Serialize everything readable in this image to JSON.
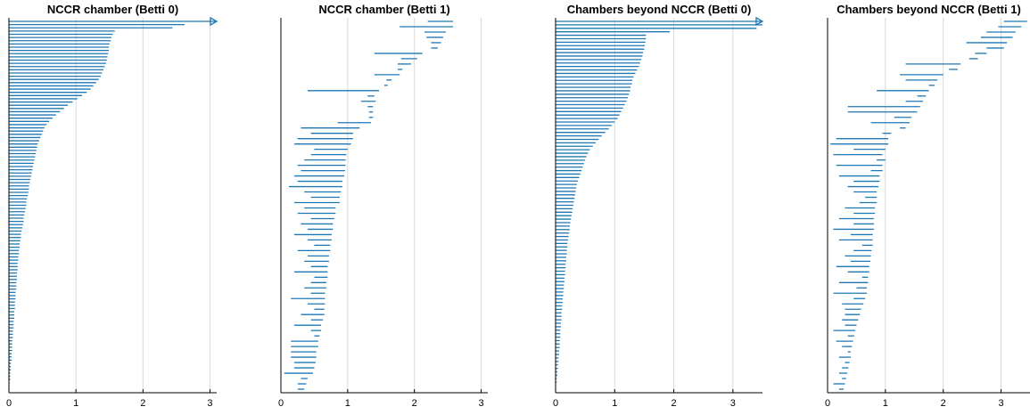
{
  "colors": {
    "bar": "#1f77b4",
    "grid": "#d9d9d9",
    "axis": "#000000"
  },
  "chart_data": [
    {
      "type": "barcode",
      "title": "NCCR chamber (Betti 0)",
      "xlim": [
        0,
        3.1
      ],
      "xticks": [
        "0",
        "1",
        "2",
        "3"
      ],
      "grid": "vertical",
      "infinite_bar": true,
      "intervals": [
        [
          0,
          3.1
        ],
        [
          0,
          2.62
        ],
        [
          0,
          2.44
        ],
        [
          0,
          1.58
        ],
        [
          0,
          1.55
        ],
        [
          0,
          1.53
        ],
        [
          0,
          1.52
        ],
        [
          0,
          1.5
        ],
        [
          0,
          1.49
        ],
        [
          0,
          1.49
        ],
        [
          0,
          1.48
        ],
        [
          0,
          1.47
        ],
        [
          0,
          1.46
        ],
        [
          0,
          1.45
        ],
        [
          0,
          1.43
        ],
        [
          0,
          1.41
        ],
        [
          0,
          1.39
        ],
        [
          0,
          1.37
        ],
        [
          0,
          1.34
        ],
        [
          0,
          1.3
        ],
        [
          0,
          1.26
        ],
        [
          0,
          1.22
        ],
        [
          0,
          1.16
        ],
        [
          0,
          1.09
        ],
        [
          0,
          1.02
        ],
        [
          0,
          0.95
        ],
        [
          0,
          0.88
        ],
        [
          0,
          0.82
        ],
        [
          0,
          0.76
        ],
        [
          0,
          0.7
        ],
        [
          0,
          0.65
        ],
        [
          0,
          0.6
        ],
        [
          0,
          0.56
        ],
        [
          0,
          0.53
        ],
        [
          0,
          0.51
        ],
        [
          0,
          0.49
        ],
        [
          0,
          0.47
        ],
        [
          0,
          0.45
        ],
        [
          0,
          0.43
        ],
        [
          0,
          0.42
        ],
        [
          0,
          0.41
        ],
        [
          0,
          0.4
        ],
        [
          0,
          0.39
        ],
        [
          0,
          0.38
        ],
        [
          0,
          0.37
        ],
        [
          0,
          0.36
        ],
        [
          0,
          0.35
        ],
        [
          0,
          0.34
        ],
        [
          0,
          0.33
        ],
        [
          0,
          0.32
        ],
        [
          0,
          0.31
        ],
        [
          0,
          0.3
        ],
        [
          0,
          0.3
        ],
        [
          0,
          0.29
        ],
        [
          0,
          0.28
        ],
        [
          0,
          0.27
        ],
        [
          0,
          0.26
        ],
        [
          0,
          0.26
        ],
        [
          0,
          0.25
        ],
        [
          0,
          0.24
        ],
        [
          0,
          0.23
        ],
        [
          0,
          0.22
        ],
        [
          0,
          0.22
        ],
        [
          0,
          0.21
        ],
        [
          0,
          0.2
        ],
        [
          0,
          0.19
        ],
        [
          0,
          0.18
        ],
        [
          0,
          0.18
        ],
        [
          0,
          0.17
        ],
        [
          0,
          0.16
        ],
        [
          0,
          0.16
        ],
        [
          0,
          0.15
        ],
        [
          0,
          0.15
        ],
        [
          0,
          0.14
        ],
        [
          0,
          0.14
        ],
        [
          0,
          0.13
        ],
        [
          0,
          0.13
        ],
        [
          0,
          0.13
        ],
        [
          0,
          0.12
        ],
        [
          0,
          0.12
        ],
        [
          0,
          0.12
        ],
        [
          0,
          0.11
        ],
        [
          0,
          0.11
        ],
        [
          0,
          0.11
        ],
        [
          0,
          0.1
        ],
        [
          0,
          0.1
        ],
        [
          0,
          0.1
        ],
        [
          0,
          0.09
        ],
        [
          0,
          0.09
        ],
        [
          0,
          0.09
        ],
        [
          0,
          0.08
        ],
        [
          0,
          0.08
        ],
        [
          0,
          0.08
        ],
        [
          0,
          0.07
        ],
        [
          0,
          0.07
        ],
        [
          0,
          0.07
        ],
        [
          0,
          0.06
        ],
        [
          0,
          0.06
        ],
        [
          0,
          0.06
        ],
        [
          0,
          0.05
        ],
        [
          0,
          0.05
        ],
        [
          0,
          0.05
        ],
        [
          0,
          0.05
        ],
        [
          0,
          0.04
        ],
        [
          0,
          0.04
        ],
        [
          0,
          0.04
        ],
        [
          0,
          0.03
        ],
        [
          0,
          0.03
        ],
        [
          0,
          0.03
        ],
        [
          0,
          0.02
        ],
        [
          0,
          0.02
        ],
        [
          0,
          0.02
        ],
        [
          0,
          0.01
        ],
        [
          0,
          0.01
        ],
        [
          0,
          0.01
        ]
      ]
    },
    {
      "type": "barcode",
      "title": "NCCR chamber (Betti 1)",
      "xlim": [
        0,
        3.1
      ],
      "xticks": [
        "0",
        "1",
        "2",
        "3"
      ],
      "grid": "vertical",
      "infinite_bar": false,
      "intervals": [
        [
          2.2,
          2.58
        ],
        [
          1.78,
          2.58
        ],
        [
          2.15,
          2.47
        ],
        [
          2.18,
          2.43
        ],
        [
          2.25,
          2.4
        ],
        [
          2.25,
          2.35
        ],
        [
          1.4,
          2.12
        ],
        [
          1.8,
          2.04
        ],
        [
          1.75,
          1.95
        ],
        [
          1.75,
          1.82
        ],
        [
          1.4,
          1.78
        ],
        [
          1.58,
          1.66
        ],
        [
          1.55,
          1.6
        ],
        [
          0.4,
          1.47
        ],
        [
          1.3,
          1.4
        ],
        [
          1.2,
          1.42
        ],
        [
          1.3,
          1.38
        ],
        [
          1.32,
          1.38
        ],
        [
          1.32,
          1.38
        ],
        [
          0.85,
          1.35
        ],
        [
          0.3,
          1.18
        ],
        [
          0.45,
          1.08
        ],
        [
          0.25,
          1.08
        ],
        [
          0.2,
          1.05
        ],
        [
          0.5,
          1.0
        ],
        [
          0.45,
          0.98
        ],
        [
          0.35,
          0.97
        ],
        [
          0.25,
          0.97
        ],
        [
          0.3,
          0.96
        ],
        [
          0.2,
          0.95
        ],
        [
          0.25,
          0.92
        ],
        [
          0.12,
          0.92
        ],
        [
          0.35,
          0.9
        ],
        [
          0.45,
          0.88
        ],
        [
          0.2,
          0.88
        ],
        [
          0.35,
          0.82
        ],
        [
          0.25,
          0.82
        ],
        [
          0.45,
          0.8
        ],
        [
          0.3,
          0.78
        ],
        [
          0.4,
          0.78
        ],
        [
          0.2,
          0.76
        ],
        [
          0.4,
          0.76
        ],
        [
          0.5,
          0.74
        ],
        [
          0.25,
          0.74
        ],
        [
          0.4,
          0.72
        ],
        [
          0.35,
          0.72
        ],
        [
          0.45,
          0.7
        ],
        [
          0.2,
          0.7
        ],
        [
          0.5,
          0.7
        ],
        [
          0.45,
          0.68
        ],
        [
          0.35,
          0.68
        ],
        [
          0.45,
          0.66
        ],
        [
          0.15,
          0.66
        ],
        [
          0.4,
          0.66
        ],
        [
          0.5,
          0.65
        ],
        [
          0.3,
          0.65
        ],
        [
          0.45,
          0.63
        ],
        [
          0.2,
          0.6
        ],
        [
          0.45,
          0.6
        ],
        [
          0.5,
          0.58
        ],
        [
          0.15,
          0.56
        ],
        [
          0.15,
          0.56
        ],
        [
          0.15,
          0.53
        ],
        [
          0.15,
          0.53
        ],
        [
          0.2,
          0.52
        ],
        [
          0.2,
          0.5
        ],
        [
          0.05,
          0.48
        ],
        [
          0.3,
          0.4
        ],
        [
          0.25,
          0.38
        ],
        [
          0.25,
          0.35
        ]
      ]
    },
    {
      "type": "barcode",
      "title": "Chambers beyond NCCR (Betti 0)",
      "xlim": [
        0,
        3.5
      ],
      "xticks": [
        "0",
        "1",
        "2",
        "3"
      ],
      "grid": "vertical",
      "infinite_bar": true,
      "intervals": [
        [
          0,
          3.5
        ],
        [
          0,
          3.5
        ],
        [
          0,
          3.4
        ],
        [
          0,
          1.93
        ],
        [
          0,
          1.53
        ],
        [
          0,
          1.53
        ],
        [
          0,
          1.52
        ],
        [
          0,
          1.51
        ],
        [
          0,
          1.5
        ],
        [
          0,
          1.48
        ],
        [
          0,
          1.47
        ],
        [
          0,
          1.45
        ],
        [
          0,
          1.43
        ],
        [
          0,
          1.41
        ],
        [
          0,
          1.38
        ],
        [
          0,
          1.35
        ],
        [
          0,
          1.32
        ],
        [
          0,
          1.3
        ],
        [
          0,
          1.29
        ],
        [
          0,
          1.27
        ],
        [
          0,
          1.26
        ],
        [
          0,
          1.24
        ],
        [
          0,
          1.22
        ],
        [
          0,
          1.2
        ],
        [
          0,
          1.17
        ],
        [
          0,
          1.14
        ],
        [
          0,
          1.11
        ],
        [
          0,
          1.08
        ],
        [
          0,
          1.05
        ],
        [
          0,
          1.0
        ],
        [
          0,
          0.95
        ],
        [
          0,
          0.9
        ],
        [
          0,
          0.84
        ],
        [
          0,
          0.78
        ],
        [
          0,
          0.73
        ],
        [
          0,
          0.68
        ],
        [
          0,
          0.63
        ],
        [
          0,
          0.58
        ],
        [
          0,
          0.55
        ],
        [
          0,
          0.52
        ],
        [
          0,
          0.5
        ],
        [
          0,
          0.48
        ],
        [
          0,
          0.46
        ],
        [
          0,
          0.44
        ],
        [
          0,
          0.42
        ],
        [
          0,
          0.4
        ],
        [
          0,
          0.38
        ],
        [
          0,
          0.36
        ],
        [
          0,
          0.35
        ],
        [
          0,
          0.34
        ],
        [
          0,
          0.33
        ],
        [
          0,
          0.32
        ],
        [
          0,
          0.31
        ],
        [
          0,
          0.3
        ],
        [
          0,
          0.29
        ],
        [
          0,
          0.28
        ],
        [
          0,
          0.27
        ],
        [
          0,
          0.26
        ],
        [
          0,
          0.25
        ],
        [
          0,
          0.24
        ],
        [
          0,
          0.24
        ],
        [
          0,
          0.23
        ],
        [
          0,
          0.22
        ],
        [
          0,
          0.21
        ],
        [
          0,
          0.2
        ],
        [
          0,
          0.2
        ],
        [
          0,
          0.19
        ],
        [
          0,
          0.19
        ],
        [
          0,
          0.18
        ],
        [
          0,
          0.18
        ],
        [
          0,
          0.17
        ],
        [
          0,
          0.17
        ],
        [
          0,
          0.16
        ],
        [
          0,
          0.16
        ],
        [
          0,
          0.15
        ],
        [
          0,
          0.15
        ],
        [
          0,
          0.14
        ],
        [
          0,
          0.14
        ],
        [
          0,
          0.13
        ],
        [
          0,
          0.13
        ],
        [
          0,
          0.12
        ],
        [
          0,
          0.12
        ],
        [
          0,
          0.11
        ],
        [
          0,
          0.11
        ],
        [
          0,
          0.1
        ],
        [
          0,
          0.1
        ],
        [
          0,
          0.1
        ],
        [
          0,
          0.09
        ],
        [
          0,
          0.09
        ],
        [
          0,
          0.08
        ],
        [
          0,
          0.08
        ],
        [
          0,
          0.08
        ],
        [
          0,
          0.07
        ],
        [
          0,
          0.07
        ],
        [
          0,
          0.07
        ],
        [
          0,
          0.06
        ],
        [
          0,
          0.06
        ],
        [
          0,
          0.05
        ],
        [
          0,
          0.05
        ],
        [
          0,
          0.04
        ],
        [
          0,
          0.04
        ],
        [
          0,
          0.03
        ],
        [
          0,
          0.03
        ],
        [
          0,
          0.02
        ],
        [
          0,
          0.02
        ],
        [
          0,
          0.01
        ],
        [
          0,
          0.01
        ]
      ]
    },
    {
      "type": "barcode",
      "title": "Chambers beyond NCCR (Betti 1)",
      "xlim": [
        0,
        3.5
      ],
      "xticks": [
        "0",
        "1",
        "2",
        "3"
      ],
      "grid": "vertical",
      "infinite_bar": false,
      "intervals": [
        [
          3.05,
          3.45
        ],
        [
          2.95,
          3.35
        ],
        [
          2.75,
          3.25
        ],
        [
          2.65,
          3.2
        ],
        [
          2.4,
          3.1
        ],
        [
          2.75,
          3.05
        ],
        [
          2.55,
          2.75
        ],
        [
          2.45,
          2.6
        ],
        [
          1.35,
          2.3
        ],
        [
          2.1,
          2.25
        ],
        [
          1.25,
          2.0
        ],
        [
          1.35,
          1.9
        ],
        [
          1.75,
          1.85
        ],
        [
          0.85,
          1.75
        ],
        [
          1.55,
          1.7
        ],
        [
          1.35,
          1.65
        ],
        [
          0.35,
          1.6
        ],
        [
          0.35,
          1.55
        ],
        [
          1.15,
          1.45
        ],
        [
          0.75,
          1.42
        ],
        [
          1.25,
          1.35
        ],
        [
          0.95,
          1.1
        ],
        [
          0.15,
          1.05
        ],
        [
          0.05,
          1.05
        ],
        [
          0.45,
          1.0
        ],
        [
          0.1,
          0.95
        ],
        [
          0.85,
          1.0
        ],
        [
          0.15,
          0.95
        ],
        [
          0.75,
          0.95
        ],
        [
          0.2,
          0.9
        ],
        [
          0.45,
          0.9
        ],
        [
          0.35,
          0.88
        ],
        [
          0.45,
          0.85
        ],
        [
          0.65,
          0.85
        ],
        [
          0.55,
          0.85
        ],
        [
          0.3,
          0.82
        ],
        [
          0.45,
          0.82
        ],
        [
          0.2,
          0.8
        ],
        [
          0.45,
          0.8
        ],
        [
          0.1,
          0.8
        ],
        [
          0.4,
          0.78
        ],
        [
          0.2,
          0.78
        ],
        [
          0.6,
          0.78
        ],
        [
          0.45,
          0.76
        ],
        [
          0.3,
          0.75
        ],
        [
          0.4,
          0.74
        ],
        [
          0.15,
          0.72
        ],
        [
          0.35,
          0.72
        ],
        [
          0.6,
          0.7
        ],
        [
          0.2,
          0.7
        ],
        [
          0.5,
          0.68
        ],
        [
          0.1,
          0.68
        ],
        [
          0.45,
          0.65
        ],
        [
          0.25,
          0.62
        ],
        [
          0.3,
          0.58
        ],
        [
          0.3,
          0.56
        ],
        [
          0.25,
          0.53
        ],
        [
          0.3,
          0.5
        ],
        [
          0.1,
          0.48
        ],
        [
          0.35,
          0.46
        ],
        [
          0.15,
          0.44
        ],
        [
          0.25,
          0.42
        ],
        [
          0.35,
          0.4
        ],
        [
          0.2,
          0.4
        ],
        [
          0.3,
          0.38
        ],
        [
          0.25,
          0.36
        ],
        [
          0.2,
          0.34
        ],
        [
          0.25,
          0.32
        ],
        [
          0.1,
          0.3
        ],
        [
          0.2,
          0.28
        ]
      ]
    }
  ]
}
